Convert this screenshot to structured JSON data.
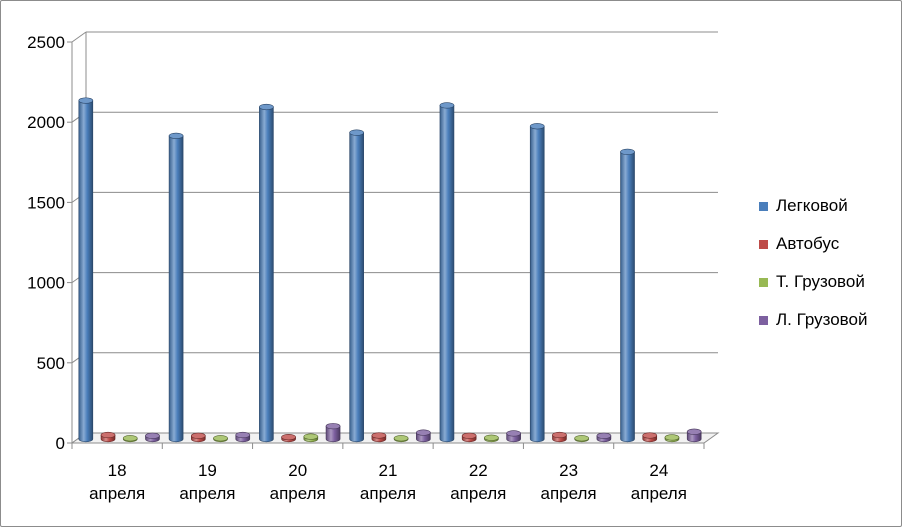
{
  "chart_data": {
    "type": "bar",
    "style": "3d-cylinder",
    "categories": [
      "18 апреля",
      "19 апреля",
      "20 апреля",
      "21 апреля",
      "22 апреля",
      "23 апреля",
      "24 апреля"
    ],
    "category_lines": [
      [
        "18",
        "апреля"
      ],
      [
        "19",
        "апреля"
      ],
      [
        "20",
        "апреля"
      ],
      [
        "21",
        "апреля"
      ],
      [
        "22",
        "апреля"
      ],
      [
        "23",
        "апреля"
      ],
      [
        "24",
        "апреля"
      ]
    ],
    "series": [
      {
        "name": "Легковой",
        "color": "#4a7ebb",
        "values": [
          2110,
          1890,
          2070,
          1910,
          2080,
          1950,
          1790
        ]
      },
      {
        "name": "Автобус",
        "color": "#be4b48",
        "values": [
          25,
          20,
          12,
          22,
          20,
          25,
          22
        ]
      },
      {
        "name": "Т. Грузовой",
        "color": "#98b954",
        "values": [
          5,
          5,
          15,
          5,
          8,
          5,
          10
        ]
      },
      {
        "name": "Л. Грузовой",
        "color": "#7d60a0",
        "values": [
          20,
          25,
          80,
          40,
          35,
          20,
          45
        ]
      }
    ],
    "yticks": [
      "0",
      "500",
      "1000",
      "1500",
      "2000",
      "2500"
    ],
    "ylim": [
      0,
      2500
    ],
    "grid": true,
    "legend_position": "right"
  }
}
